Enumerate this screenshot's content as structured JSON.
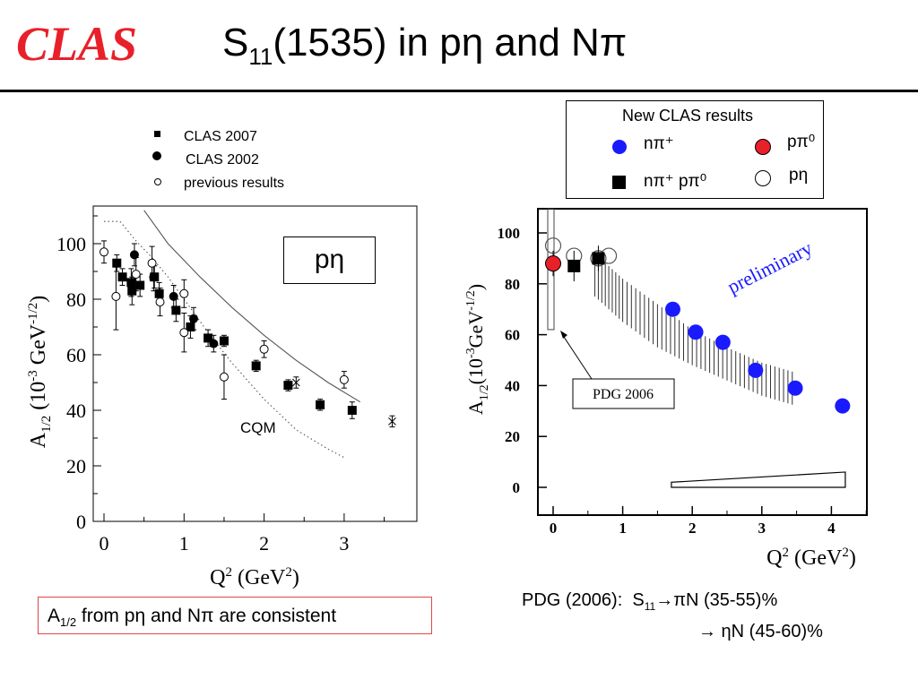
{
  "header": {
    "logo": "CLAS",
    "title_prefix": "S",
    "title_sub": "11",
    "title_rest": "(1535) in pη and Nπ"
  },
  "left_legend": {
    "items": [
      {
        "label": "CLAS 2007",
        "marker": "filled-square"
      },
      {
        "label": "CLAS 2002",
        "marker": "filled-circle"
      },
      {
        "label": "previous results",
        "marker": "open-circle"
      }
    ]
  },
  "right_legend": {
    "title": "New CLAS results",
    "items": [
      {
        "label": "nπ⁺",
        "marker": "blue-circle",
        "color": "#1a1aff"
      },
      {
        "label": "pπ⁰",
        "marker": "red-circle",
        "color": "#e8202a"
      },
      {
        "label": "nπ⁺ pπ⁰",
        "marker": "filled-square"
      },
      {
        "label": "pη",
        "marker": "open-circle"
      }
    ]
  },
  "annotations": {
    "pn_box": "pη",
    "cqm": "CQM",
    "preliminary": "preliminary",
    "pdg2006_box": "PDG 2006",
    "consistent_a": "A",
    "consistent_sub": "1/2",
    "consistent_rest": " from pη and Nπ are consistent",
    "pdg_line1_a": "PDG (2006):  S",
    "pdg_line1_sub": "11",
    "pdg_line1_rest": "→πN (35-55)%",
    "pdg_line2": "→ ηN (45-60)%"
  },
  "chart_data": [
    {
      "type": "scatter",
      "title": "",
      "xlabel": "Q2 (GeV2)",
      "ylabel": "A1/2 (10-3 GeV-1/2)",
      "xlim": [
        -0.1,
        3.9
      ],
      "ylim": [
        0,
        112
      ],
      "x_ticks": [
        "0",
        "1",
        "2",
        "3"
      ],
      "y_ticks": [
        "0",
        "20",
        "40",
        "60",
        "80",
        "100"
      ],
      "grid": false,
      "series": [
        {
          "name": "CLAS 2007",
          "marker": "filled-square",
          "x": [
            0.16,
            0.23,
            0.34,
            0.35,
            0.45,
            0.63,
            0.69,
            0.9,
            1.08,
            1.3,
            1.5,
            1.9,
            2.3,
            2.7,
            3.1
          ],
          "y": [
            93,
            88,
            86,
            83,
            85,
            88,
            82,
            76,
            70,
            66,
            65,
            56,
            49,
            42,
            40
          ],
          "err": [
            3,
            3,
            5,
            5,
            4,
            4,
            4,
            4,
            4,
            3,
            2,
            2,
            2,
            2,
            3
          ]
        },
        {
          "name": "CLAS 2002",
          "marker": "filled-circle",
          "x": [
            0.38,
            0.62,
            0.87,
            1.12,
            1.37
          ],
          "y": [
            96,
            88,
            81,
            73,
            64
          ],
          "err": [
            4,
            5,
            4,
            4,
            3
          ]
        },
        {
          "name": "previous results",
          "marker": "open-circle",
          "x": [
            0.0,
            0.15,
            0.4,
            0.6,
            0.7,
            1.0,
            1.0,
            1.5,
            2.0,
            3.0
          ],
          "y": [
            97,
            81,
            89,
            93,
            79,
            82,
            68,
            52,
            62,
            51
          ],
          "err": [
            4,
            12,
            6,
            6,
            5,
            5,
            7,
            8,
            3,
            3
          ]
        },
        {
          "name": "",
          "marker": "x-cross",
          "x": [
            2.4,
            3.6
          ],
          "y": [
            50,
            36
          ],
          "err": [
            2,
            2
          ]
        }
      ],
      "curves": [
        {
          "name": "",
          "style": "solid",
          "x": [
            0.5,
            0.8,
            1.2,
            1.6,
            2.0,
            2.4,
            2.8,
            3.2
          ],
          "y": [
            112,
            100,
            88,
            77,
            67,
            58,
            50,
            43
          ]
        },
        {
          "name": "",
          "style": "dotted",
          "x": [
            0.0,
            0.2,
            0.4,
            0.6,
            0.8,
            1.0,
            1.3,
            1.6,
            2.0,
            2.4,
            2.8,
            3.0
          ],
          "y": [
            108,
            108,
            101,
            95,
            88,
            80,
            68,
            57,
            44,
            33,
            26,
            23
          ]
        }
      ]
    },
    {
      "type": "scatter",
      "title": "",
      "xlabel": "Q2 (GeV2)",
      "ylabel": "A1/2(10-3GeV-1/2)",
      "xlim": [
        -0.3,
        4.6
      ],
      "ylim": [
        -10,
        112
      ],
      "x_ticks": [
        "0",
        "1",
        "2",
        "3",
        "4"
      ],
      "y_ticks": [
        "0",
        "20",
        "40",
        "60",
        "80",
        "100"
      ],
      "grid": false,
      "series": [
        {
          "name": "nπ⁺",
          "marker": "blue-circle",
          "x": [
            1.72,
            2.05,
            2.44,
            2.91,
            3.48,
            4.16
          ],
          "y": [
            70,
            61,
            57,
            46,
            39,
            32
          ]
        },
        {
          "name": "pπ⁰",
          "marker": "red-circle",
          "x": [
            0.0
          ],
          "y": [
            88
          ],
          "err": [
            5
          ]
        },
        {
          "name": "nπ⁺ pπ⁰",
          "marker": "filled-square",
          "x": [
            0.3,
            0.65
          ],
          "y": [
            87,
            90
          ],
          "err": [
            6,
            5
          ]
        },
        {
          "name": "pη",
          "marker": "open-circle",
          "x": [
            0.0,
            0.3,
            0.65,
            0.8
          ],
          "y": [
            95,
            91,
            90,
            91
          ]
        }
      ],
      "bands": [
        {
          "name": "",
          "style": "hatched",
          "x": [
            0.6,
            1.0,
            1.5,
            2.0,
            2.5,
            3.0,
            3.5
          ],
          "lower": [
            75,
            65,
            55,
            48,
            42,
            36,
            32
          ],
          "upper": [
            92,
            82,
            72,
            62,
            55,
            49,
            45
          ]
        },
        {
          "name": "",
          "style": "outline",
          "x": [
            1.7,
            4.2
          ],
          "lower": [
            0,
            0
          ],
          "upper": [
            2,
            6
          ]
        }
      ]
    }
  ]
}
